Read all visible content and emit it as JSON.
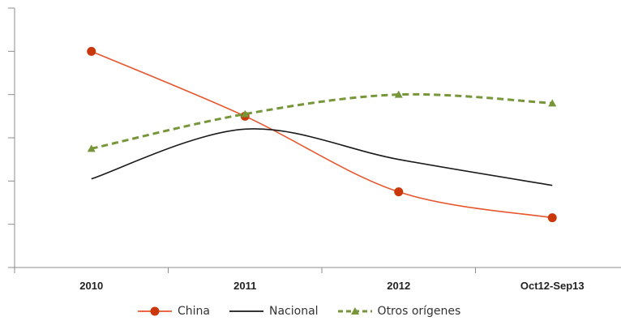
{
  "chart_data": {
    "type": "line",
    "title": "",
    "xlabel": "",
    "ylabel": "",
    "categories": [
      "2010",
      "2011",
      "2012",
      "Oct12-Sep13"
    ],
    "ylim": [
      0,
      6
    ],
    "ytick_count": 7,
    "ytick_labels_visible": false,
    "grid": false,
    "legend_position": "bottom",
    "smooth": true,
    "series": [
      {
        "name": "China",
        "values": [
          5.0,
          3.5,
          1.75,
          1.15
        ],
        "color": "#E8552C",
        "marker_color": "#C9370A",
        "marker": "circle",
        "dash": "solid"
      },
      {
        "name": "Nacional",
        "values": [
          2.05,
          3.2,
          2.5,
          1.9
        ],
        "color": "#1a1a1a",
        "marker": "none",
        "dash": "solid"
      },
      {
        "name": "Otros orígenes",
        "values": [
          2.75,
          3.55,
          4.0,
          3.8
        ],
        "color": "#77963A",
        "marker_color": "#77963A",
        "marker": "triangle",
        "dash": "dashed"
      }
    ]
  }
}
